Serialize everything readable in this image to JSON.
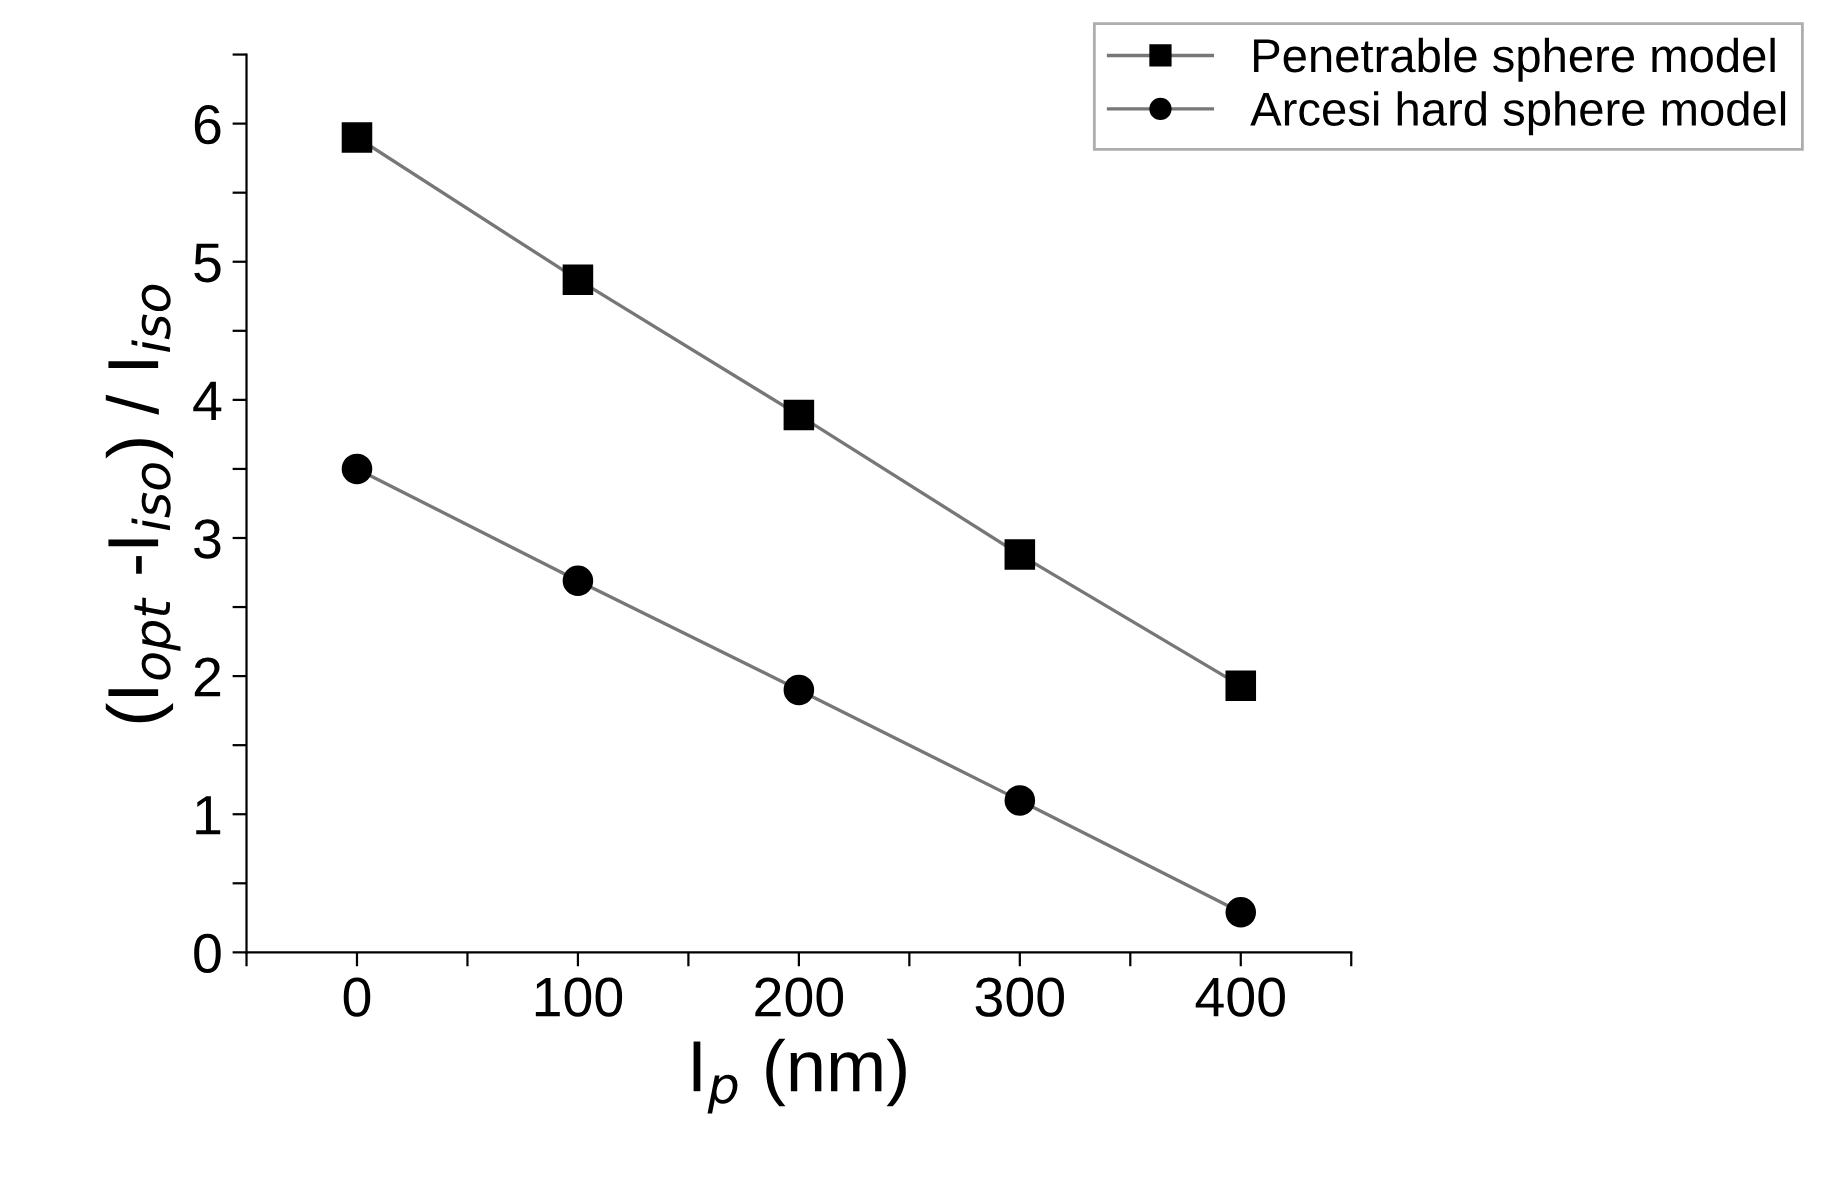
{
  "chart_data": {
    "type": "line",
    "xlabel": "I$_{p}$ (nm)",
    "ylabel": "(I$_{opt}$ -I$_{iso}$) / I$_{iso}$",
    "x": [
      0,
      100,
      200,
      300,
      400
    ],
    "series": [
      {
        "name": "Penetrable sphere model",
        "color": "#000000",
        "marker": "square",
        "values": [
          5.9,
          4.87,
          3.89,
          2.88,
          1.93
        ]
      },
      {
        "name": "Arcesi hard sphere model",
        "color": "#000000",
        "marker": "circle",
        "values": [
          3.5,
          2.69,
          1.9,
          1.1,
          0.29
        ]
      }
    ],
    "xlim": [
      -50,
      450
    ],
    "xticks": [
      {
        "value": -50,
        "label": null
      },
      0,
      {
        "value": 50,
        "label": null
      },
      100,
      {
        "value": 150,
        "label": null
      },
      200,
      {
        "value": 250,
        "label": null
      },
      300,
      {
        "value": 350,
        "label": null
      },
      400,
      {
        "value": 450,
        "label": null
      }
    ],
    "ylim": [
      0,
      6.5
    ],
    "yticks": [
      0,
      {
        "value": 0.5,
        "label": null
      },
      1,
      {
        "value": 1.5,
        "label": null
      },
      2,
      {
        "value": 2.5,
        "label": null
      },
      3,
      {
        "value": 3.5,
        "label": null
      },
      4,
      {
        "value": 4.5,
        "label": null
      },
      5,
      {
        "value": 5.5,
        "label": null
      },
      6,
      {
        "value": 6.5,
        "label": null
      }
    ],
    "grid": false,
    "legend": "top right",
    "line_style": "solid"
  }
}
